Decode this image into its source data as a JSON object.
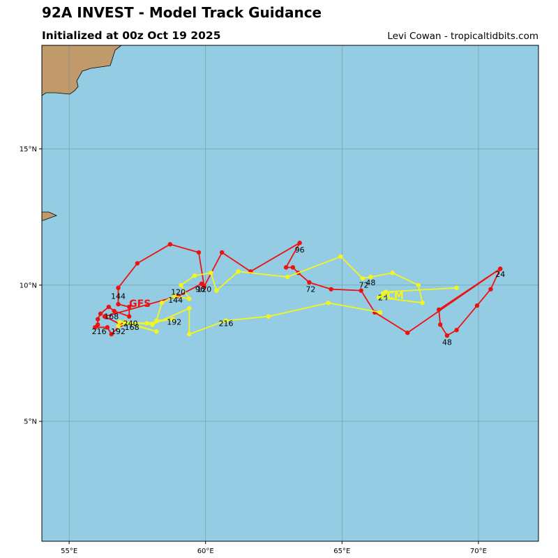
{
  "header": {
    "title": "92A INVEST - Model Track Guidance",
    "subtitle": "Initialized at 00z Oct 19 2025",
    "credit": "Levi Cowan - tropicaltidbits.com"
  },
  "colors": {
    "ocean": "#94CDE3",
    "land": "#C19A6B",
    "grid": "#5A8A92",
    "gfs": "#EE1111",
    "ecmwf": "#F5F51E"
  },
  "map_data": {
    "lon_range": [
      54,
      72.2
    ],
    "lat_range": [
      0.6,
      18.8
    ],
    "x_ticks": [
      {
        "value": 55,
        "label": "55°E"
      },
      {
        "value": 60,
        "label": "60°E"
      },
      {
        "value": 65,
        "label": "65°E"
      },
      {
        "value": 70,
        "label": "70°E"
      }
    ],
    "y_ticks": [
      {
        "value": 5,
        "label": "5°N"
      },
      {
        "value": 10,
        "label": "10°N"
      },
      {
        "value": 15,
        "label": "15°N"
      }
    ],
    "series": [
      {
        "name": "GFS",
        "color": "#EE1111",
        "name_label": "GFS",
        "name_label_pos": [
          57.2,
          9.2
        ],
        "points": [
          [
            70.8,
            10.6
          ],
          [
            70.45,
            9.85
          ],
          [
            69.95,
            9.25
          ],
          [
            69.2,
            8.35
          ],
          [
            68.85,
            8.15
          ],
          [
            68.6,
            8.55
          ],
          [
            68.55,
            9.1
          ],
          [
            70.8,
            10.6
          ],
          [
            67.4,
            8.25
          ],
          [
            66.2,
            9.0
          ],
          [
            65.7,
            9.8
          ],
          [
            64.6,
            9.85
          ],
          [
            63.8,
            10.1
          ],
          [
            63.4,
            10.45
          ],
          [
            63.2,
            10.65
          ],
          [
            62.95,
            10.65
          ],
          [
            63.45,
            11.55
          ],
          [
            61.65,
            10.5
          ],
          [
            60.6,
            11.2
          ],
          [
            59.95,
            9.95
          ],
          [
            59.75,
            11.2
          ],
          [
            58.7,
            11.5
          ],
          [
            57.5,
            10.8
          ],
          [
            56.8,
            9.9
          ],
          [
            56.8,
            9.3
          ],
          [
            57.2,
            9.2
          ],
          [
            57.2,
            8.85
          ],
          [
            56.65,
            9.05
          ],
          [
            56.45,
            9.2
          ],
          [
            56.15,
            8.95
          ],
          [
            56.05,
            8.75
          ],
          [
            56.05,
            8.55
          ],
          [
            55.95,
            8.45
          ],
          [
            56.4,
            8.45
          ],
          [
            56.55,
            8.2
          ],
          [
            56.9,
            8.55
          ],
          [
            56.3,
            8.85
          ],
          [
            59.0,
            9.6
          ],
          [
            59.85,
            10.05
          ]
        ],
        "hour_labels": [
          {
            "text": "24",
            "pos": [
              70.8,
              10.3
            ]
          },
          {
            "text": "48",
            "pos": [
              68.85,
              7.8
            ]
          },
          {
            "text": "72",
            "pos": [
              63.85,
              9.75
            ]
          },
          {
            "text": "96",
            "pos": [
              63.45,
              11.2
            ]
          },
          {
            "text": "120",
            "pos": [
              59.95,
              9.75
            ]
          },
          {
            "text": "144",
            "pos": [
              56.8,
              9.5
            ]
          },
          {
            "text": "168",
            "pos": [
              56.55,
              8.75
            ]
          },
          {
            "text": "192",
            "pos": [
              56.8,
              8.2
            ]
          },
          {
            "text": "216",
            "pos": [
              56.1,
              8.2
            ]
          },
          {
            "text": "240",
            "pos": [
              57.25,
              8.5
            ]
          }
        ]
      },
      {
        "name": "ECM",
        "color": "#F5F51E",
        "name_label": "ECM",
        "name_label_pos": [
          66.4,
          9.5
        ],
        "points": [
          [
            69.2,
            9.9
          ],
          [
            66.6,
            9.75
          ],
          [
            66.35,
            9.55
          ],
          [
            67.95,
            9.35
          ],
          [
            67.8,
            10.0
          ],
          [
            66.85,
            10.45
          ],
          [
            66.05,
            10.3
          ],
          [
            65.75,
            10.25
          ],
          [
            64.95,
            11.05
          ],
          [
            63.0,
            10.3
          ],
          [
            61.2,
            10.5
          ],
          [
            60.4,
            9.8
          ],
          [
            60.2,
            10.45
          ],
          [
            59.6,
            10.35
          ],
          [
            59.1,
            10.0
          ],
          [
            59.4,
            9.5
          ],
          [
            58.85,
            9.6
          ],
          [
            58.4,
            9.35
          ],
          [
            58.2,
            8.7
          ],
          [
            58.8,
            8.75
          ],
          [
            57.85,
            8.6
          ],
          [
            56.85,
            8.65
          ],
          [
            56.8,
            8.5
          ],
          [
            57.1,
            8.6
          ],
          [
            58.2,
            8.3
          ],
          [
            57.05,
            8.65
          ],
          [
            58.05,
            8.55
          ],
          [
            59.4,
            9.15
          ],
          [
            59.4,
            8.2
          ],
          [
            60.75,
            8.7
          ],
          [
            62.3,
            8.85
          ],
          [
            64.5,
            9.35
          ],
          [
            66.4,
            9.0
          ]
        ],
        "hour_labels": [
          {
            "text": "48",
            "pos": [
              66.05,
              10.0
            ]
          },
          {
            "text": "72",
            "pos": [
              65.8,
              9.9
            ]
          },
          {
            "text": "96",
            "pos": [
              59.8,
              9.75
            ]
          },
          {
            "text": "120",
            "pos": [
              59.0,
              9.65
            ]
          },
          {
            "text": "144",
            "pos": [
              58.9,
              9.35
            ]
          },
          {
            "text": "168",
            "pos": [
              57.3,
              8.35
            ]
          },
          {
            "text": "192",
            "pos": [
              58.85,
              8.55
            ]
          },
          {
            "text": "216",
            "pos": [
              60.75,
              8.5
            ]
          },
          {
            "text": "24",
            "pos": [
              66.5,
              9.45
            ]
          }
        ]
      }
    ]
  }
}
